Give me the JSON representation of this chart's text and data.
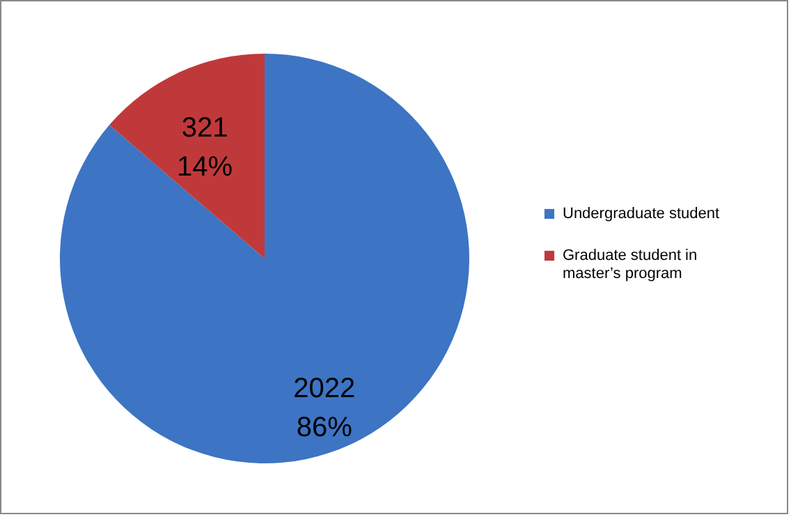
{
  "chart_data": {
    "type": "pie",
    "categories": [
      "Undergraduate student",
      "Graduate student in master’s program"
    ],
    "values": [
      2022,
      321
    ],
    "colors": [
      "#3d74c4",
      "#c0393a"
    ],
    "value_labels": [
      "2022\n86%",
      "321\n14%"
    ],
    "legend": "right"
  }
}
